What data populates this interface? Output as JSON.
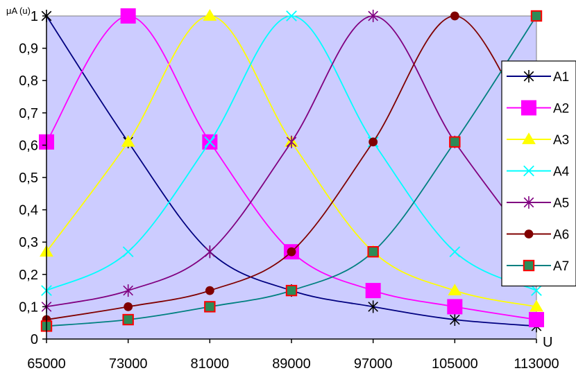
{
  "chart_data": {
    "type": "line",
    "title": "",
    "ylabel": "μA (u)",
    "xlabel": "U",
    "x": [
      65000,
      73000,
      81000,
      89000,
      97000,
      105000,
      113000
    ],
    "x_tick_labels": [
      "65000",
      "73000",
      "81000",
      "89000",
      "97000",
      "105000",
      "113000"
    ],
    "y_tick_labels": [
      "0",
      "0,1",
      "0,2",
      "0,3",
      "0,4",
      "0,5",
      "0,6",
      "0,7",
      "0,8",
      "0,9",
      "1"
    ],
    "xlim": [
      65000,
      113000
    ],
    "ylim": [
      0,
      1
    ],
    "grid": false,
    "plot_background": "#ccccff",
    "legend_position": "right",
    "series": [
      {
        "name": "A1",
        "color": "#000080",
        "marker": "asterisk",
        "values": [
          1,
          0.61,
          0.27,
          0.15,
          0.1,
          0.06,
          0.04
        ]
      },
      {
        "name": "A2",
        "color": "#ff00ff",
        "marker": "square",
        "values": [
          0.61,
          1,
          0.61,
          0.27,
          0.15,
          0.1,
          0.06
        ]
      },
      {
        "name": "A3",
        "color": "#ffff00",
        "marker": "triangle",
        "values": [
          0.27,
          0.61,
          1,
          0.61,
          0.27,
          0.15,
          0.1
        ]
      },
      {
        "name": "A4",
        "color": "#00ffff",
        "marker": "x",
        "values": [
          0.15,
          0.27,
          0.61,
          1,
          0.61,
          0.27,
          0.15
        ]
      },
      {
        "name": "A5",
        "color": "#800080",
        "marker": "asterisk",
        "values": [
          0.1,
          0.15,
          0.27,
          0.61,
          1,
          0.61,
          0.27
        ]
      },
      {
        "name": "A6",
        "color": "#800000",
        "marker": "circle",
        "values": [
          0.06,
          0.1,
          0.15,
          0.27,
          0.61,
          1,
          0.61
        ]
      },
      {
        "name": "A7",
        "color": "#008080",
        "marker": "square-outlined",
        "values": [
          0.04,
          0.06,
          0.1,
          0.15,
          0.27,
          0.61,
          1
        ]
      }
    ]
  }
}
